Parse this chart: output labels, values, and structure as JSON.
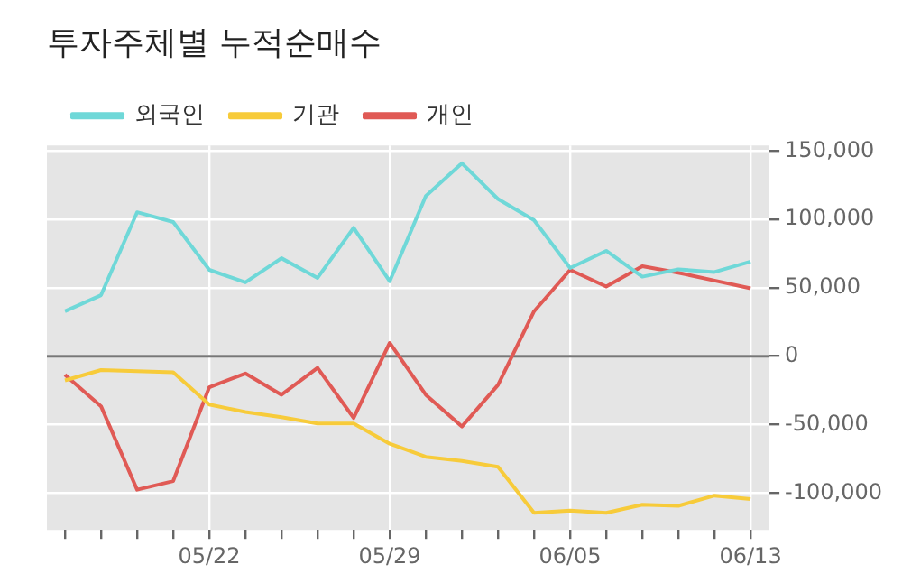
{
  "chart_data": {
    "type": "line",
    "title": "투자주체별 누적순매수",
    "categories": [
      null,
      null,
      null,
      null,
      "05/22",
      null,
      null,
      null,
      null,
      "05/29",
      null,
      null,
      null,
      null,
      "06/05",
      null,
      null,
      null,
      null,
      "06/13"
    ],
    "series": [
      {
        "name": "외국인",
        "color": "#6fd8d8",
        "values": [
          32800,
          44600,
          105200,
          98100,
          63100,
          53900,
          71600,
          57200,
          93800,
          54700,
          117000,
          141000,
          114900,
          99400,
          64400,
          77000,
          58100,
          63500,
          61500,
          69100
        ]
      },
      {
        "name": "기관",
        "color": "#f7cb3a",
        "values": [
          -17700,
          -10100,
          -11000,
          -11700,
          -35400,
          -40800,
          -44600,
          -49200,
          -49200,
          -64000,
          -73600,
          -76600,
          -80800,
          -114500,
          -112800,
          -114500,
          -108600,
          -109400,
          -101900,
          -104400
        ]
      },
      {
        "name": "개인",
        "color": "#e05a55",
        "values": [
          -13500,
          -36600,
          -97600,
          -91300,
          -22700,
          -12600,
          -28200,
          -8500,
          -45100,
          9700,
          -28200,
          -51400,
          -21100,
          32800,
          63100,
          50900,
          65700,
          61000,
          55300,
          49600
        ]
      }
    ],
    "ylim": [
      -127000,
      154000
    ],
    "yticks": [
      {
        "value": -100000,
        "label": "-100,000"
      },
      {
        "value": -50000,
        "label": "-50,000"
      },
      0,
      {
        "value": 50000,
        "label": "50,000"
      },
      {
        "value": 100000,
        "label": "100,000"
      },
      {
        "value": 150000,
        "label": "150,000"
      }
    ],
    "ref_lines": [
      {
        "axis": "y",
        "value": 0,
        "color": "#777777"
      }
    ],
    "grid": true,
    "legend": "top left"
  }
}
